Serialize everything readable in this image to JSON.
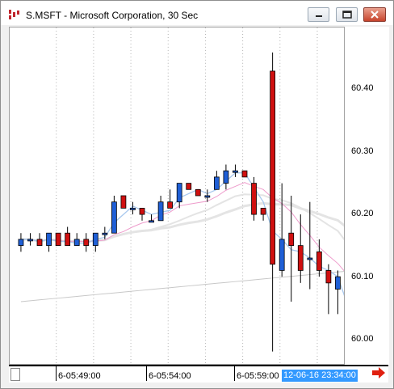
{
  "window": {
    "title": "S.MSFT - Microsoft Corporation, 30 Sec",
    "buttons": {
      "minimize": "minimize-icon",
      "restore": "restore-icon",
      "close": "close-icon"
    }
  },
  "chart_data": {
    "type": "candlestick",
    "symbol": "S.MSFT",
    "interval": "30 Sec",
    "y_ticks": [
      "60.40",
      "60.30",
      "60.20",
      "60.10",
      "60.00"
    ],
    "ylim": [
      59.96,
      60.5
    ],
    "x_ticks": [
      "6-05:49:00",
      "6-05:54:00",
      "6-05:59:00"
    ],
    "current_time": "12-06-16 23:34:00",
    "colors": {
      "up": "#1f5fd6",
      "down": "#d01010",
      "ma_fast": "#a8c8ee",
      "ma_mid": "#ee9ccc",
      "ma_slow": "#e4e4e4",
      "ma_long": "#c8c8c8",
      "cursor": "#3399ff"
    },
    "candles": [
      {
        "o": 60.15,
        "h": 60.17,
        "l": 60.14,
        "c": 60.16
      },
      {
        "o": 60.16,
        "h": 60.17,
        "l": 60.15,
        "c": 60.16
      },
      {
        "o": 60.16,
        "h": 60.17,
        "l": 60.15,
        "c": 60.15
      },
      {
        "o": 60.15,
        "h": 60.17,
        "l": 60.14,
        "c": 60.17
      },
      {
        "o": 60.17,
        "h": 60.17,
        "l": 60.15,
        "c": 60.15
      },
      {
        "o": 60.17,
        "h": 60.18,
        "l": 60.15,
        "c": 60.15
      },
      {
        "o": 60.15,
        "h": 60.17,
        "l": 60.15,
        "c": 60.16
      },
      {
        "o": 60.16,
        "h": 60.17,
        "l": 60.14,
        "c": 60.15
      },
      {
        "o": 60.15,
        "h": 60.17,
        "l": 60.14,
        "c": 60.17
      },
      {
        "o": 60.17,
        "h": 60.18,
        "l": 60.16,
        "c": 60.17
      },
      {
        "o": 60.17,
        "h": 60.23,
        "l": 60.17,
        "c": 60.22
      },
      {
        "o": 60.23,
        "h": 60.23,
        "l": 60.21,
        "c": 60.21
      },
      {
        "o": 60.21,
        "h": 60.22,
        "l": 60.2,
        "c": 60.21
      },
      {
        "o": 60.21,
        "h": 60.21,
        "l": 60.19,
        "c": 60.2
      },
      {
        "o": 60.19,
        "h": 60.2,
        "l": 60.19,
        "c": 60.19
      },
      {
        "o": 60.19,
        "h": 60.23,
        "l": 60.19,
        "c": 60.22
      },
      {
        "o": 60.22,
        "h": 60.24,
        "l": 60.21,
        "c": 60.21
      },
      {
        "o": 60.22,
        "h": 60.25,
        "l": 60.21,
        "c": 60.25
      },
      {
        "o": 60.25,
        "h": 60.25,
        "l": 60.24,
        "c": 60.24
      },
      {
        "o": 60.24,
        "h": 60.24,
        "l": 60.23,
        "c": 60.23
      },
      {
        "o": 60.23,
        "h": 60.24,
        "l": 60.22,
        "c": 60.23
      },
      {
        "o": 60.24,
        "h": 60.27,
        "l": 60.24,
        "c": 60.26
      },
      {
        "o": 60.25,
        "h": 60.28,
        "l": 60.24,
        "c": 60.27
      },
      {
        "o": 60.27,
        "h": 60.28,
        "l": 60.26,
        "c": 60.27
      },
      {
        "o": 60.27,
        "h": 60.27,
        "l": 60.26,
        "c": 60.26
      },
      {
        "o": 60.25,
        "h": 60.26,
        "l": 60.19,
        "c": 60.2
      },
      {
        "o": 60.21,
        "h": 60.21,
        "l": 60.19,
        "c": 60.2
      },
      {
        "o": 60.43,
        "h": 60.46,
        "l": 59.98,
        "c": 60.12
      },
      {
        "o": 60.11,
        "h": 60.25,
        "l": 60.1,
        "c": 60.16
      },
      {
        "o": 60.17,
        "h": 60.23,
        "l": 60.06,
        "c": 60.15
      },
      {
        "o": 60.15,
        "h": 60.2,
        "l": 60.09,
        "c": 60.11
      },
      {
        "o": 60.13,
        "h": 60.22,
        "l": 60.08,
        "c": 60.13
      },
      {
        "o": 60.14,
        "h": 60.16,
        "l": 60.1,
        "c": 60.11
      },
      {
        "o": 60.11,
        "h": 60.12,
        "l": 60.04,
        "c": 60.09
      },
      {
        "o": 60.08,
        "h": 60.11,
        "l": 60.04,
        "c": 60.1
      },
      {
        "o": 60.11,
        "h": 60.11,
        "l": 59.97,
        "c": 59.98
      }
    ]
  }
}
